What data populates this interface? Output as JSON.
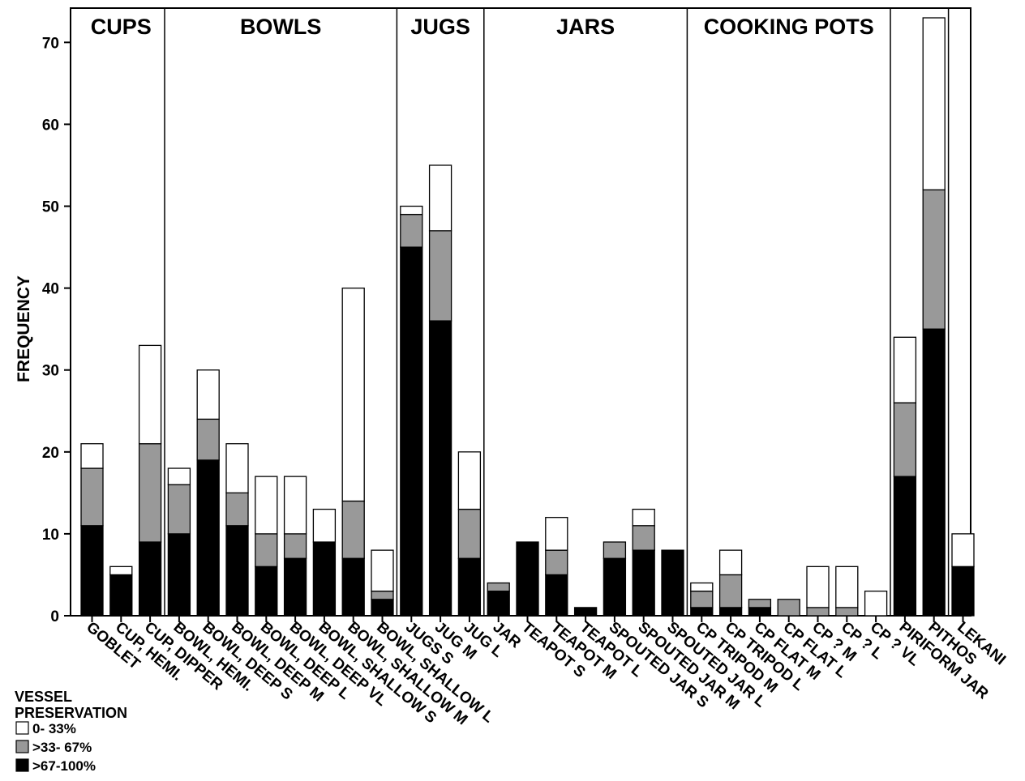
{
  "chart_data": {
    "type": "bar",
    "stacked": true,
    "ylabel": "FREQUENCY",
    "ylim": [
      0,
      73
    ],
    "yticks": [
      0,
      10,
      20,
      30,
      40,
      50,
      60,
      70
    ],
    "grid": false,
    "categories": [
      "GOBLET",
      "CUP, HEMI.",
      "CUP, DIPPER",
      "BOWL, HEMI.",
      "BOWL, DEEP S",
      "BOWL, DEEP M",
      "BOWL, DEEP L",
      "BOWL, DEEP VL",
      "BOWL, SHALLOW S",
      "BOWL, SHALLOW M",
      "BOWL, SHALLOW L",
      "JUGS S",
      "JUG M",
      "JUG L",
      "JAR",
      "TEAPOT S",
      "TEAPOT M",
      "TEAPOT L",
      "SPOUTED JAR S",
      "SPOUTED JAR M",
      "SPOUTED JAR L",
      "CP TRIPOD M",
      "CP TRIPOD L",
      "CP FLAT M",
      "CP FLAT L",
      "CP ? M",
      "CP ? L",
      "CP ? VL",
      "PIRIFORM JAR",
      "PITHOS",
      "LEKANI"
    ],
    "groups": [
      {
        "label": "CUPS",
        "count": 3
      },
      {
        "label": "BOWLS",
        "count": 8
      },
      {
        "label": "JUGS",
        "count": 3
      },
      {
        "label": "JARS",
        "count": 7
      },
      {
        "label": "COOKING POTS",
        "count": 7
      },
      {
        "label": "",
        "count": 2
      },
      {
        "label": "",
        "count": 1
      }
    ],
    "series": [
      {
        "name": ">67-100%",
        "color": "#000000",
        "values": [
          11,
          5,
          9,
          10,
          19,
          11,
          6,
          7,
          9,
          7,
          2,
          45,
          36,
          7,
          3,
          9,
          5,
          1,
          7,
          8,
          8,
          1,
          1,
          1,
          0,
          0,
          0,
          0,
          17,
          35,
          6
        ]
      },
      {
        "name": ">33- 67%",
        "color": "#999999",
        "values": [
          7,
          0,
          12,
          6,
          5,
          4,
          4,
          3,
          0,
          7,
          1,
          4,
          11,
          6,
          1,
          0,
          3,
          0,
          2,
          3,
          0,
          2,
          4,
          1,
          2,
          1,
          1,
          0,
          9,
          17,
          0
        ]
      },
      {
        "name": "0- 33%",
        "color": "#ffffff",
        "values": [
          3,
          1,
          12,
          2,
          6,
          6,
          7,
          7,
          4,
          26,
          5,
          1,
          8,
          7,
          0,
          0,
          4,
          0,
          0,
          2,
          0,
          1,
          3,
          0,
          0,
          5,
          5,
          3,
          8,
          21,
          4
        ]
      }
    ],
    "legend": {
      "title": "VESSEL PRESERVATION",
      "title_lines": [
        "VESSEL",
        "PRESERVATION"
      ],
      "placement": "bottom-left"
    }
  }
}
